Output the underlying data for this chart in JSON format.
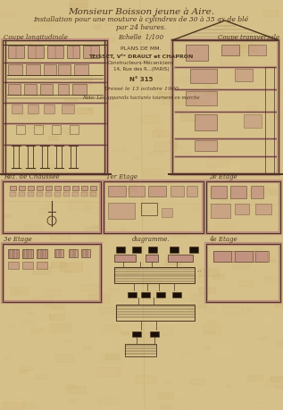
{
  "bg_color": "#d6c08a",
  "line_color": "#4a3520",
  "pink_color": "#c09080",
  "dark_color": "#1a1008",
  "title1": "Monsieur Boisson jeune à Aire.",
  "title2": "Installation pour une mouture à cylindres de 30 à 35 qx de blé",
  "title3": "par 24 heures.",
  "label_coupe_long": "Coupe longitudinale",
  "label_coupe_trans": "Coupe transversale",
  "label_echelle": "Echelle",
  "label_rdc": "Rez. de Chaussée",
  "label_1er": "1er Etage",
  "label_2e": "2e Etage",
  "label_3e": "3e Etage",
  "label_diagramme": "diagramme.",
  "label_4e": "4e Etage",
  "center_text1": "PLANS DE MM.",
  "center_text2": "TEISSET, Vᵗᵉ DRAULT et CHAPRON",
  "center_text3": "Constructeurs-Mécaniciens",
  "center_text4": "14, Rue des R...(PARIS)",
  "center_text5": "N° 315",
  "center_text6": "Dressé le 13 octobre 1900",
  "center_text7": "Note: Les appareils hacturés tournent en marche",
  "figsize": [
    3.17,
    4.59
  ],
  "dpi": 100
}
